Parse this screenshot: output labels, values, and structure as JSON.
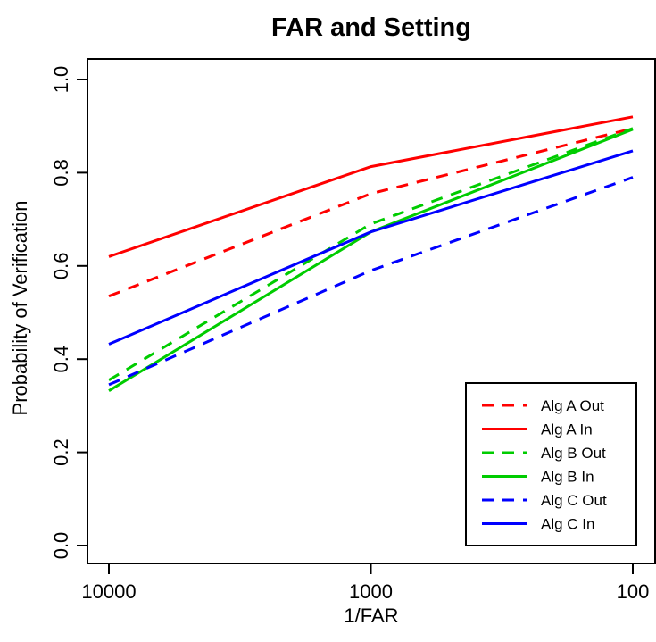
{
  "chart_data": {
    "type": "line",
    "title": "FAR and Setting",
    "xlabel": "1/FAR",
    "ylabel": "Probability of Verification",
    "x": [
      10000,
      1000,
      100
    ],
    "x_tick_labels": [
      "10000",
      "1000",
      "100"
    ],
    "x_scale": "log",
    "x_reversed": true,
    "ylim": [
      0,
      1
    ],
    "y_ticks": [
      0.0,
      0.2,
      0.4,
      0.6,
      0.8,
      1.0
    ],
    "y_tick_labels": [
      "0.0",
      "0.2",
      "0.4",
      "0.6",
      "0.8",
      "1.0"
    ],
    "grid": false,
    "legend_position": "bottom-right",
    "series": [
      {
        "name": "Alg A Out",
        "values": [
          0.535,
          0.755,
          0.895
        ],
        "color": "#ff0000",
        "dash": "dashed"
      },
      {
        "name": "Alg A In",
        "values": [
          0.62,
          0.813,
          0.92
        ],
        "color": "#ff0000",
        "dash": "solid"
      },
      {
        "name": "Alg B Out",
        "values": [
          0.355,
          0.69,
          0.895
        ],
        "color": "#00cc00",
        "dash": "dashed"
      },
      {
        "name": "Alg B In",
        "values": [
          0.332,
          0.673,
          0.893
        ],
        "color": "#00cc00",
        "dash": "solid"
      },
      {
        "name": "Alg C Out",
        "values": [
          0.345,
          0.59,
          0.79
        ],
        "color": "#0000ff",
        "dash": "dashed"
      },
      {
        "name": "Alg C In",
        "values": [
          0.432,
          0.673,
          0.847
        ],
        "color": "#0000ff",
        "dash": "solid"
      }
    ]
  }
}
